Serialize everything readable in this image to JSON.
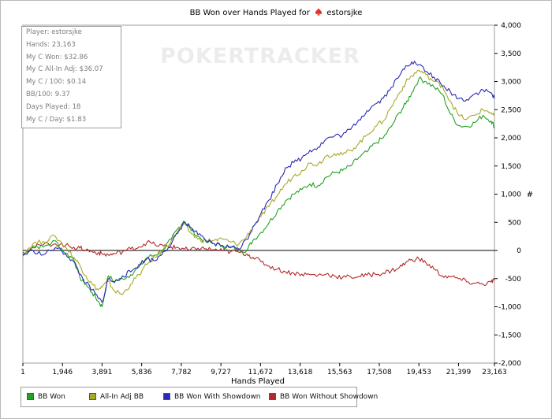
{
  "title": {
    "prefix": "BB Won over Hands Played for",
    "player": "estorsjke",
    "suit_icon": "spade-icon",
    "suit_color": "#e0312b"
  },
  "watermark": "POKERTRACKER",
  "stats": [
    "Player: estorsjke",
    "Hands: 23,163",
    "My C Won: $32.86",
    "My C All-In Adj: $36.07",
    "My C / 100: $0.14",
    "BB/100: 9.37",
    "Days Played: 18",
    "My C / Day: $1.83"
  ],
  "chart_data": {
    "type": "line",
    "title": "BB Won over Hands Played for estorsjke",
    "xlabel": "Hands Played",
    "ylabel": "#",
    "xlim": [
      1,
      23163
    ],
    "ylim": [
      -2000,
      4000
    ],
    "x_ticks": [
      1,
      1946,
      3891,
      5836,
      7782,
      9727,
      11672,
      13618,
      15563,
      17508,
      19453,
      21399,
      23163
    ],
    "x_tick_labels": [
      "1",
      "1,946",
      "3,891",
      "5,836",
      "7,782",
      "9,727",
      "11,672",
      "13,618",
      "15,563",
      "17,508",
      "19,453",
      "21,399",
      "23,163"
    ],
    "y_ticks": [
      4000,
      3500,
      3000,
      2500,
      2000,
      1500,
      1000,
      500,
      0,
      -500,
      -1000,
      -1500,
      -2000
    ],
    "y_tick_labels": [
      "4,000",
      "3,500",
      "3,000",
      "2,500",
      "2,000",
      "1,500",
      "1,000",
      "500",
      "0",
      "-500",
      "-1,000",
      "-1,500",
      "-2,000"
    ],
    "legend_position": "bottom-left",
    "grid": false,
    "series": [
      {
        "name": "BB Won",
        "color": "#22a222",
        "x": [
          1,
          500,
          1000,
          1600,
          2100,
          2500,
          2800,
          3100,
          3400,
          3700,
          3891,
          4200,
          4500,
          4900,
          5300,
          5700,
          6100,
          6500,
          6900,
          7300,
          7600,
          7900,
          8200,
          8600,
          9000,
          9400,
          9800,
          10200,
          10600,
          11000,
          11300,
          11700,
          12100,
          12500,
          12900,
          13300,
          13700,
          14100,
          14500,
          14900,
          15300,
          15700,
          16100,
          16500,
          16900,
          17300,
          17700,
          18100,
          18500,
          18800,
          19100,
          19453,
          19800,
          20200,
          20600,
          21000,
          21400,
          21800,
          22200,
          22600,
          23000,
          23163
        ],
        "values": [
          -100,
          80,
          60,
          170,
          -50,
          -150,
          -480,
          -600,
          -750,
          -900,
          -1000,
          -450,
          -550,
          -500,
          -430,
          -300,
          -120,
          -80,
          20,
          200,
          380,
          520,
          400,
          250,
          150,
          120,
          80,
          50,
          20,
          0,
          180,
          320,
          500,
          700,
          880,
          1000,
          1080,
          1180,
          1150,
          1300,
          1380,
          1420,
          1500,
          1650,
          1750,
          1900,
          2000,
          2200,
          2450,
          2600,
          2800,
          3050,
          3000,
          2900,
          2780,
          2420,
          2220,
          2200,
          2270,
          2400,
          2300,
          2200
        ]
      },
      {
        "name": "All-In Adj BB",
        "color": "#a8a82a",
        "x": [
          1,
          500,
          1000,
          1600,
          2100,
          2500,
          2800,
          3100,
          3400,
          3700,
          3891,
          4200,
          4500,
          4900,
          5300,
          5700,
          6100,
          6500,
          6900,
          7300,
          7600,
          7900,
          8200,
          8600,
          9000,
          9400,
          9800,
          10200,
          10600,
          11000,
          11300,
          11700,
          12100,
          12500,
          12900,
          13300,
          13700,
          14100,
          14500,
          14900,
          15300,
          15700,
          16100,
          16500,
          16900,
          17300,
          17700,
          18100,
          18500,
          18800,
          19100,
          19453,
          19800,
          20200,
          20600,
          21000,
          21400,
          21800,
          22200,
          22600,
          23000,
          23163
        ],
        "values": [
          -60,
          120,
          160,
          250,
          60,
          -120,
          -260,
          -450,
          -600,
          -700,
          -650,
          -550,
          -720,
          -780,
          -600,
          -430,
          -250,
          -120,
          20,
          180,
          340,
          470,
          330,
          200,
          170,
          180,
          200,
          150,
          110,
          250,
          420,
          600,
          780,
          980,
          1180,
          1320,
          1420,
          1550,
          1530,
          1680,
          1720,
          1700,
          1780,
          1900,
          2050,
          2200,
          2300,
          2550,
          2800,
          2980,
          3100,
          3200,
          3120,
          3000,
          2920,
          2650,
          2400,
          2330,
          2400,
          2500,
          2450,
          2380
        ]
      },
      {
        "name": "BB Won With Showdown",
        "color": "#2a2ab4",
        "x": [
          1,
          500,
          1000,
          1600,
          2100,
          2500,
          2800,
          3100,
          3400,
          3700,
          3891,
          4200,
          4500,
          4900,
          5300,
          5700,
          6100,
          6500,
          6900,
          7300,
          7600,
          7900,
          8200,
          8600,
          9000,
          9400,
          9800,
          10200,
          10600,
          11000,
          11300,
          11700,
          12100,
          12500,
          12900,
          13300,
          13700,
          14100,
          14500,
          14900,
          15300,
          15700,
          16100,
          16500,
          16900,
          17300,
          17700,
          18100,
          18500,
          18800,
          19100,
          19453,
          19800,
          20200,
          20600,
          21000,
          21400,
          21800,
          22200,
          22600,
          23000,
          23163
        ],
        "values": [
          -80,
          0,
          -80,
          50,
          -60,
          -200,
          -420,
          -580,
          -700,
          -850,
          -920,
          -500,
          -570,
          -450,
          -380,
          -250,
          -150,
          -180,
          -20,
          120,
          300,
          500,
          420,
          280,
          170,
          120,
          90,
          60,
          30,
          200,
          420,
          660,
          900,
          1180,
          1470,
          1560,
          1640,
          1780,
          1830,
          1980,
          2030,
          2050,
          2150,
          2320,
          2480,
          2600,
          2700,
          2900,
          3100,
          3280,
          3350,
          3300,
          3180,
          3080,
          2920,
          2820,
          2700,
          2680,
          2780,
          2850,
          2800,
          2700
        ]
      },
      {
        "name": "BB Won Without Showdown",
        "color": "#b42a2a",
        "x": [
          1,
          500,
          1000,
          1600,
          2100,
          2500,
          2800,
          3100,
          3400,
          3700,
          3891,
          4200,
          4500,
          4900,
          5300,
          5700,
          6100,
          6500,
          6900,
          7300,
          7600,
          7900,
          8200,
          8600,
          9000,
          9400,
          9800,
          10200,
          10600,
          11000,
          11300,
          11700,
          12100,
          12500,
          12900,
          13300,
          13700,
          14100,
          14500,
          14900,
          15300,
          15700,
          16100,
          16500,
          16900,
          17300,
          17700,
          18100,
          18500,
          18800,
          19100,
          19453,
          19800,
          20200,
          20600,
          21000,
          21400,
          21800,
          22200,
          22600,
          23000,
          23163
        ],
        "values": [
          -30,
          50,
          100,
          120,
          90,
          60,
          40,
          10,
          -20,
          -40,
          -60,
          -80,
          -60,
          -20,
          30,
          60,
          150,
          100,
          80,
          60,
          50,
          30,
          0,
          40,
          30,
          10,
          -10,
          -20,
          -30,
          -60,
          -120,
          -200,
          -280,
          -330,
          -380,
          -400,
          -420,
          -430,
          -440,
          -420,
          -450,
          -480,
          -470,
          -460,
          -440,
          -420,
          -400,
          -360,
          -300,
          -220,
          -160,
          -150,
          -220,
          -330,
          -450,
          -470,
          -500,
          -560,
          -580,
          -600,
          -560,
          -530
        ]
      }
    ]
  }
}
